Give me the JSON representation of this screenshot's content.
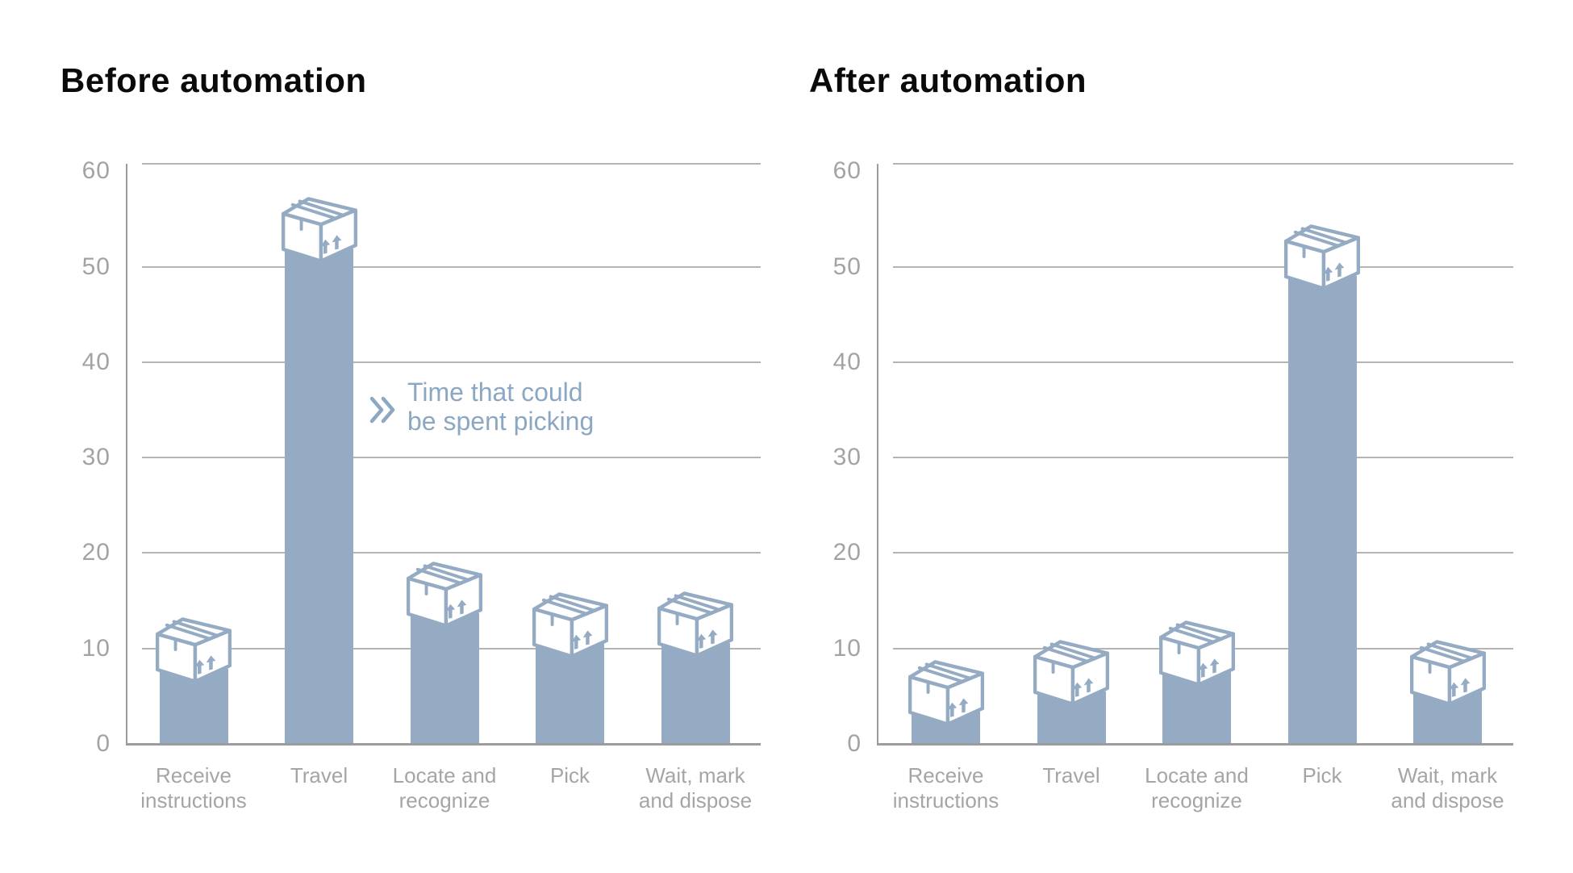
{
  "page": {
    "background": "#ffffff",
    "kind": "warehouse picking time infographic, two bar charts"
  },
  "chart_data": [
    {
      "type": "bar",
      "title": "Before automation",
      "categories": [
        "Receive\ninstructions",
        "Travel",
        "Locate and\nrecognize",
        "Pick",
        "Wait, mark\nand dispose"
      ],
      "values": [
        13.5,
        57.5,
        19,
        16,
        16
      ],
      "bar_fill_values": [
        7.9,
        51.9,
        13.7,
        10.5,
        10.6
      ],
      "note": "each bar is topped by a package-box pictogram ~5.5 units tall; 'values' = total height incl. icon, 'bar_fill_values' = solid fill height",
      "ylim": [
        0,
        60
      ],
      "yticks": [
        0,
        10,
        20,
        30,
        40,
        50,
        60
      ],
      "grid": true,
      "legend": false,
      "xlabel": "",
      "ylabel": ""
    },
    {
      "type": "bar",
      "title": "After automation",
      "categories": [
        "Receive\ninstructions",
        "Travel",
        "Locate and\nrecognize",
        "Pick",
        "Wait, mark\nand dispose"
      ],
      "values": [
        9,
        11,
        13,
        54.5,
        11
      ],
      "bar_fill_values": [
        3.4,
        5.5,
        7.5,
        49.0,
        5.5
      ],
      "note": "each bar is topped by a package-box pictogram ~5.5 units tall; 'values' = total height incl. icon, 'bar_fill_values' = solid fill height",
      "ylim": [
        0,
        60
      ],
      "yticks": [
        0,
        10,
        20,
        30,
        40,
        50,
        60
      ],
      "grid": true,
      "legend": false,
      "xlabel": "",
      "ylabel": ""
    }
  ],
  "annotation": {
    "icon": "double-chevron-right-icon",
    "text": "Time that could\nbe spent picking"
  },
  "icons": {
    "bar_top": "package-box-icon"
  },
  "colors": {
    "bar": "#94abc3",
    "icon_stroke": "#94abc3",
    "annotation": "#8ca7c2",
    "gridline": "#b4b4b4",
    "axis": "#9c9c9c",
    "tick_label": "#a3a3a3",
    "category_label": "#a5a5a5",
    "title": "#0a0a0a",
    "background": "#ffffff"
  }
}
